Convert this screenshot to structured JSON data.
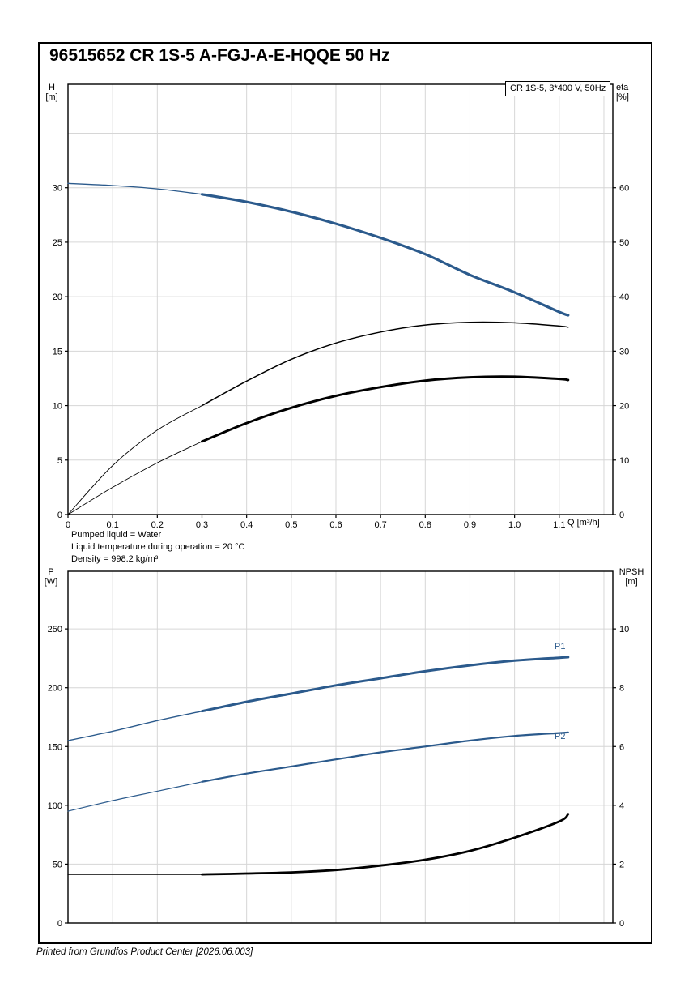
{
  "page": {
    "title": "96515652 CR 1S-5 A-FGJ-A-E-HQQE 50 Hz",
    "footer": "Printed from Grundfos Product Center [2026.06.003]",
    "conditions": [
      "Pumped liquid = Water",
      "Liquid temperature during operation = 20 °C",
      "Density = 998.2 kg/m³"
    ]
  },
  "colors": {
    "curve_blue": "#2b5a8c",
    "curve_black": "#000000",
    "grid": "#d6d6d6",
    "frame": "#000000"
  },
  "chart_data": [
    {
      "type": "line",
      "legend": "CR 1S-5, 3*400 V, 50Hz",
      "x_axis": {
        "label": "Q [m³/h]",
        "min": 0,
        "max": 1.22,
        "grid": [
          0.1,
          0.2,
          0.3,
          0.4,
          0.5,
          0.6,
          0.7,
          0.8,
          0.9,
          1.0,
          1.1,
          1.2
        ],
        "ticks": [
          {
            "v": 0,
            "t": "0"
          },
          {
            "v": 0.1,
            "t": "0.1"
          },
          {
            "v": 0.2,
            "t": "0.2"
          },
          {
            "v": 0.3,
            "t": "0.3"
          },
          {
            "v": 0.4,
            "t": "0.4"
          },
          {
            "v": 0.5,
            "t": "0.5"
          },
          {
            "v": 0.6,
            "t": "0.6"
          },
          {
            "v": 0.7,
            "t": "0.7"
          },
          {
            "v": 0.8,
            "t": "0.8"
          },
          {
            "v": 0.9,
            "t": "0.9"
          },
          {
            "v": 1.0,
            "t": "1.0"
          },
          {
            "v": 1.1,
            "t": "1.1"
          }
        ]
      },
      "y_left": {
        "label": "H\n[m]",
        "min": 0,
        "max": 39.5,
        "grid": [
          5,
          10,
          15,
          20,
          25,
          30,
          35
        ],
        "ticks": [
          {
            "v": 0,
            "t": "0"
          },
          {
            "v": 5,
            "t": "5"
          },
          {
            "v": 10,
            "t": "10"
          },
          {
            "v": 15,
            "t": "15"
          },
          {
            "v": 20,
            "t": "20"
          },
          {
            "v": 25,
            "t": "25"
          },
          {
            "v": 30,
            "t": "30"
          }
        ]
      },
      "y_right": {
        "label": "eta\n[%]",
        "min": 0,
        "max": 79,
        "ticks": [
          {
            "v": 0,
            "t": "0"
          },
          {
            "v": 10,
            "t": "10"
          },
          {
            "v": 20,
            "t": "20"
          },
          {
            "v": 30,
            "t": "30"
          },
          {
            "v": 40,
            "t": "40"
          },
          {
            "v": 50,
            "t": "50"
          },
          {
            "v": 60,
            "t": "60"
          }
        ]
      },
      "series": [
        {
          "key": "h",
          "name": "head-curve",
          "axis": "left",
          "color": "#2b5a8c",
          "thick_from": 0.3,
          "points": [
            [
              0,
              30.4
            ],
            [
              0.1,
              30.2
            ],
            [
              0.2,
              29.9
            ],
            [
              0.3,
              29.4
            ],
            [
              0.4,
              28.7
            ],
            [
              0.5,
              27.8
            ],
            [
              0.6,
              26.7
            ],
            [
              0.7,
              25.4
            ],
            [
              0.8,
              23.9
            ],
            [
              0.9,
              22.0
            ],
            [
              1.0,
              20.4
            ],
            [
              1.1,
              18.6
            ],
            [
              1.12,
              18.3
            ]
          ]
        },
        {
          "key": "eta1",
          "name": "efficiency-pump",
          "axis": "right",
          "color": "#000000",
          "thick_from": 0.3,
          "points": [
            [
              0,
              0
            ],
            [
              0.1,
              9.0
            ],
            [
              0.2,
              15.5
            ],
            [
              0.3,
              20.0
            ],
            [
              0.4,
              24.5
            ],
            [
              0.5,
              28.5
            ],
            [
              0.6,
              31.5
            ],
            [
              0.7,
              33.5
            ],
            [
              0.8,
              34.8
            ],
            [
              0.9,
              35.3
            ],
            [
              1.0,
              35.2
            ],
            [
              1.1,
              34.6
            ],
            [
              1.12,
              34.4
            ]
          ]
        },
        {
          "key": "eta2",
          "name": "efficiency-pump-motor",
          "axis": "right",
          "color": "#000000",
          "thick_from": 0.3,
          "points": [
            [
              0,
              0
            ],
            [
              0.1,
              5.0
            ],
            [
              0.2,
              9.5
            ],
            [
              0.3,
              13.4
            ],
            [
              0.4,
              16.8
            ],
            [
              0.5,
              19.6
            ],
            [
              0.6,
              21.8
            ],
            [
              0.7,
              23.4
            ],
            [
              0.8,
              24.6
            ],
            [
              0.9,
              25.2
            ],
            [
              1.0,
              25.3
            ],
            [
              1.1,
              24.9
            ],
            [
              1.12,
              24.7
            ]
          ]
        }
      ]
    },
    {
      "type": "line",
      "x_axis": {
        "label": "",
        "min": 0,
        "max": 1.22,
        "grid": [
          0.1,
          0.2,
          0.3,
          0.4,
          0.5,
          0.6,
          0.7,
          0.8,
          0.9,
          1.0,
          1.1,
          1.2
        ],
        "ticks": []
      },
      "y_left": {
        "label": "P\n[W]",
        "min": 0,
        "max": 299,
        "grid": [
          50,
          100,
          150,
          200,
          250
        ],
        "ticks": [
          {
            "v": 0,
            "t": "0"
          },
          {
            "v": 50,
            "t": "50"
          },
          {
            "v": 100,
            "t": "100"
          },
          {
            "v": 150,
            "t": "150"
          },
          {
            "v": 200,
            "t": "200"
          },
          {
            "v": 250,
            "t": "250"
          }
        ]
      },
      "y_right": {
        "label": "NPSH\n[m]",
        "min": 0,
        "max": 11.96,
        "ticks": [
          {
            "v": 0,
            "t": "0"
          },
          {
            "v": 2,
            "t": "2"
          },
          {
            "v": 4,
            "t": "4"
          },
          {
            "v": 6,
            "t": "6"
          },
          {
            "v": 8,
            "t": "8"
          },
          {
            "v": 10,
            "t": "10"
          }
        ]
      },
      "series": [
        {
          "key": "p1",
          "name": "power-input-p1",
          "label": "P1",
          "axis": "left",
          "color": "#2b5a8c",
          "thick_from": 0.3,
          "points": [
            [
              0,
              155
            ],
            [
              0.1,
              163
            ],
            [
              0.2,
              172
            ],
            [
              0.3,
              180
            ],
            [
              0.4,
              188
            ],
            [
              0.5,
              195
            ],
            [
              0.6,
              202
            ],
            [
              0.7,
              208
            ],
            [
              0.8,
              214
            ],
            [
              0.9,
              219
            ],
            [
              1.0,
              223
            ],
            [
              1.1,
              225.5
            ],
            [
              1.12,
              226
            ]
          ]
        },
        {
          "key": "p2",
          "name": "power-shaft-p2",
          "label": "P2",
          "axis": "left",
          "color": "#2b5a8c",
          "thick_from": 0.3,
          "points": [
            [
              0,
              95
            ],
            [
              0.1,
              104
            ],
            [
              0.2,
              112
            ],
            [
              0.3,
              120
            ],
            [
              0.4,
              127
            ],
            [
              0.5,
              133
            ],
            [
              0.6,
              139
            ],
            [
              0.7,
              145
            ],
            [
              0.8,
              150
            ],
            [
              0.9,
              155
            ],
            [
              1.0,
              159
            ],
            [
              1.1,
              161.5
            ],
            [
              1.12,
              162
            ]
          ]
        },
        {
          "key": "npsh",
          "name": "npsh-curve",
          "axis": "right",
          "color": "#000000",
          "thick_from": 0.3,
          "points": [
            [
              0,
              1.65
            ],
            [
              0.1,
              1.65
            ],
            [
              0.2,
              1.65
            ],
            [
              0.3,
              1.65
            ],
            [
              0.4,
              1.68
            ],
            [
              0.5,
              1.72
            ],
            [
              0.6,
              1.8
            ],
            [
              0.7,
              1.95
            ],
            [
              0.8,
              2.15
            ],
            [
              0.9,
              2.45
            ],
            [
              1.0,
              2.9
            ],
            [
              1.1,
              3.45
            ],
            [
              1.12,
              3.7
            ]
          ]
        }
      ]
    }
  ]
}
